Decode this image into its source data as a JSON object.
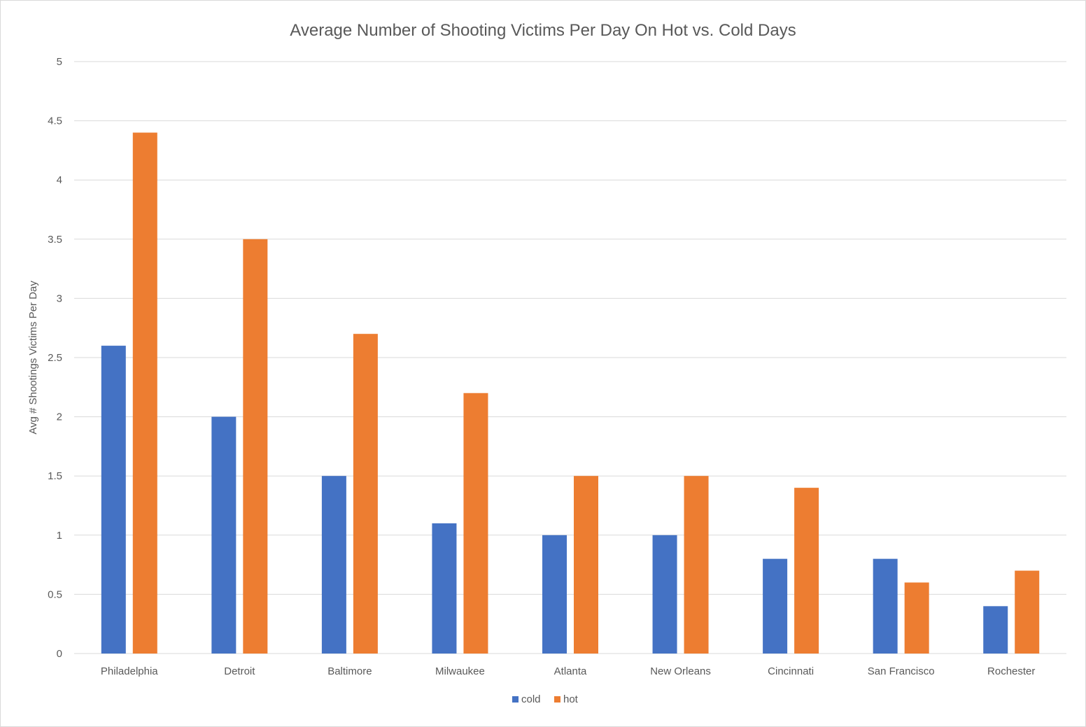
{
  "chart_data": {
    "type": "bar",
    "title": "Average Number of Shooting Victims Per Day On Hot vs. Cold Days",
    "xlabel": "",
    "ylabel": "Avg # Shootings Victims Per Day",
    "ylim": [
      0,
      5
    ],
    "yticks": [
      "0",
      "0.5",
      "1",
      "1.5",
      "2",
      "2.5",
      "3",
      "3.5",
      "4",
      "4.5",
      "5"
    ],
    "categories": [
      "Philadelphia",
      "Detroit",
      "Baltimore",
      "Milwaukee",
      "Atlanta",
      "New Orleans",
      "Cincinnati",
      "San Francisco",
      "Rochester"
    ],
    "series": [
      {
        "name": "cold",
        "color": "#4472c4",
        "values": [
          2.6,
          2.0,
          1.5,
          1.1,
          1.0,
          1.0,
          0.8,
          0.8,
          0.4
        ]
      },
      {
        "name": "hot",
        "color": "#ed7d31",
        "values": [
          4.4,
          3.5,
          2.7,
          2.2,
          1.5,
          1.5,
          1.4,
          0.6,
          0.7
        ]
      }
    ],
    "grid": true,
    "legend": "bottom"
  }
}
